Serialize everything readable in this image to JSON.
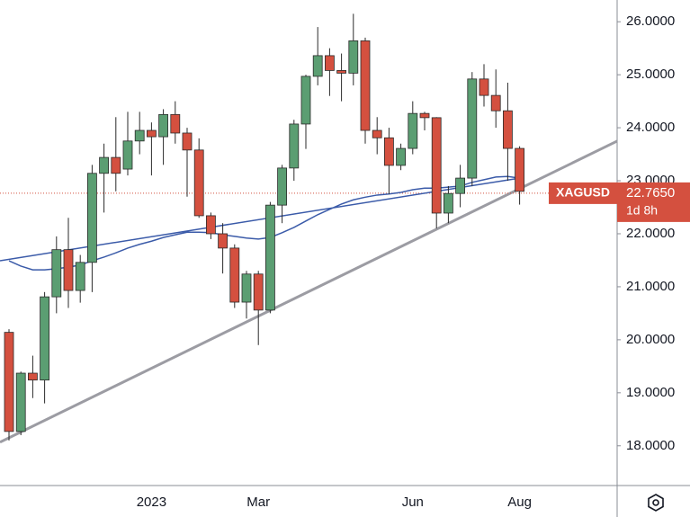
{
  "chart_data": {
    "type": "candlestick",
    "symbol": "XAGUSD",
    "categories": [
      null,
      null,
      null,
      null,
      null,
      null,
      null,
      null,
      null,
      null,
      null,
      null,
      "2023",
      null,
      null,
      null,
      null,
      null,
      null,
      null,
      null,
      "Mar",
      null,
      null,
      null,
      null,
      null,
      null,
      null,
      null,
      null,
      null,
      null,
      null,
      "Jun",
      null,
      null,
      null,
      null,
      null,
      null,
      null,
      null,
      "Aug"
    ],
    "open": [
      20.14,
      18.27,
      19.37,
      19.24,
      20.81,
      21.7,
      20.93,
      21.46,
      23.14,
      23.44,
      23.22,
      23.75,
      23.95,
      23.83,
      24.25,
      23.9,
      23.58,
      22.34,
      22.0,
      21.73,
      20.71,
      21.24,
      20.56,
      22.54,
      23.24,
      24.07,
      24.97,
      25.36,
      25.08,
      25.03,
      25.64,
      23.95,
      23.81,
      23.29,
      23.61,
      24.27,
      24.19,
      22.39,
      22.76,
      23.05,
      24.92,
      24.61,
      24.32,
      23.61
    ],
    "high": [
      20.2,
      19.4,
      19.7,
      20.9,
      21.95,
      22.3,
      21.6,
      23.3,
      23.7,
      24.2,
      24.3,
      24.3,
      24.1,
      24.35,
      24.5,
      24.0,
      23.8,
      22.4,
      22.2,
      21.8,
      21.3,
      21.3,
      22.6,
      23.3,
      24.15,
      25.0,
      25.9,
      25.5,
      25.4,
      26.15,
      25.7,
      24.2,
      24.0,
      23.7,
      24.5,
      24.3,
      24.2,
      22.9,
      23.3,
      25.05,
      25.2,
      25.1,
      24.85,
      23.65
    ],
    "low": [
      18.1,
      18.2,
      18.9,
      18.8,
      20.5,
      20.6,
      20.7,
      20.9,
      22.4,
      22.8,
      23.1,
      23.5,
      23.1,
      23.3,
      23.7,
      22.7,
      22.3,
      21.9,
      21.25,
      20.6,
      20.4,
      19.9,
      20.5,
      22.2,
      23.0,
      23.6,
      24.8,
      24.6,
      24.5,
      24.8,
      23.7,
      23.5,
      22.75,
      23.2,
      23.5,
      23.95,
      22.1,
      22.2,
      22.5,
      22.9,
      24.4,
      24.0,
      23.0,
      22.55
    ],
    "close": [
      18.27,
      19.37,
      19.24,
      20.81,
      21.7,
      20.93,
      21.46,
      23.14,
      23.44,
      23.14,
      23.75,
      23.95,
      23.83,
      24.25,
      23.9,
      23.58,
      22.34,
      22.0,
      21.73,
      20.71,
      21.24,
      20.56,
      22.54,
      23.24,
      24.07,
      24.97,
      25.36,
      25.08,
      25.03,
      25.64,
      23.95,
      23.81,
      23.29,
      23.61,
      24.27,
      24.19,
      22.39,
      22.76,
      23.05,
      24.92,
      24.61,
      24.32,
      23.61,
      22.8
    ],
    "up_color": "#5b9e72",
    "down_color": "#d4503f",
    "moving_average": {
      "color": "#3b5ba9",
      "values": [
        21.49,
        21.39,
        21.32,
        21.32,
        21.34,
        21.37,
        21.41,
        21.49,
        21.56,
        21.64,
        21.73,
        21.8,
        21.86,
        21.93,
        21.98,
        22.03,
        22.03,
        22.02,
        21.98,
        21.95,
        21.92,
        21.9,
        21.93,
        22.02,
        22.12,
        22.24,
        22.36,
        22.46,
        22.56,
        22.64,
        22.69,
        22.73,
        22.75,
        22.78,
        22.83,
        22.86,
        22.86,
        22.88,
        22.9,
        22.97,
        23.02,
        23.07,
        23.08,
        23.05
      ]
    },
    "trendline": {
      "color": "#9c9ca3",
      "start": 18.15,
      "end": 22.85
    },
    "last_price": {
      "value": 22.765,
      "label": "22.7650"
    },
    "countdown": "1d 8h",
    "price_color": "#d4503f",
    "ylim": [
      17.25,
      26.41
    ],
    "yticks": [
      {
        "value": 18,
        "label": "18.0000"
      },
      {
        "value": 19,
        "label": "19.0000"
      },
      {
        "value": 20,
        "label": "20.0000"
      },
      {
        "value": 21,
        "label": "21.0000"
      },
      {
        "value": 22,
        "label": "22.0000"
      },
      {
        "value": 23,
        "label": "23.0000"
      },
      {
        "value": 24,
        "label": "24.0000"
      },
      {
        "value": 25,
        "label": "25.0000"
      },
      {
        "value": 26,
        "label": "26.0000"
      }
    ]
  }
}
